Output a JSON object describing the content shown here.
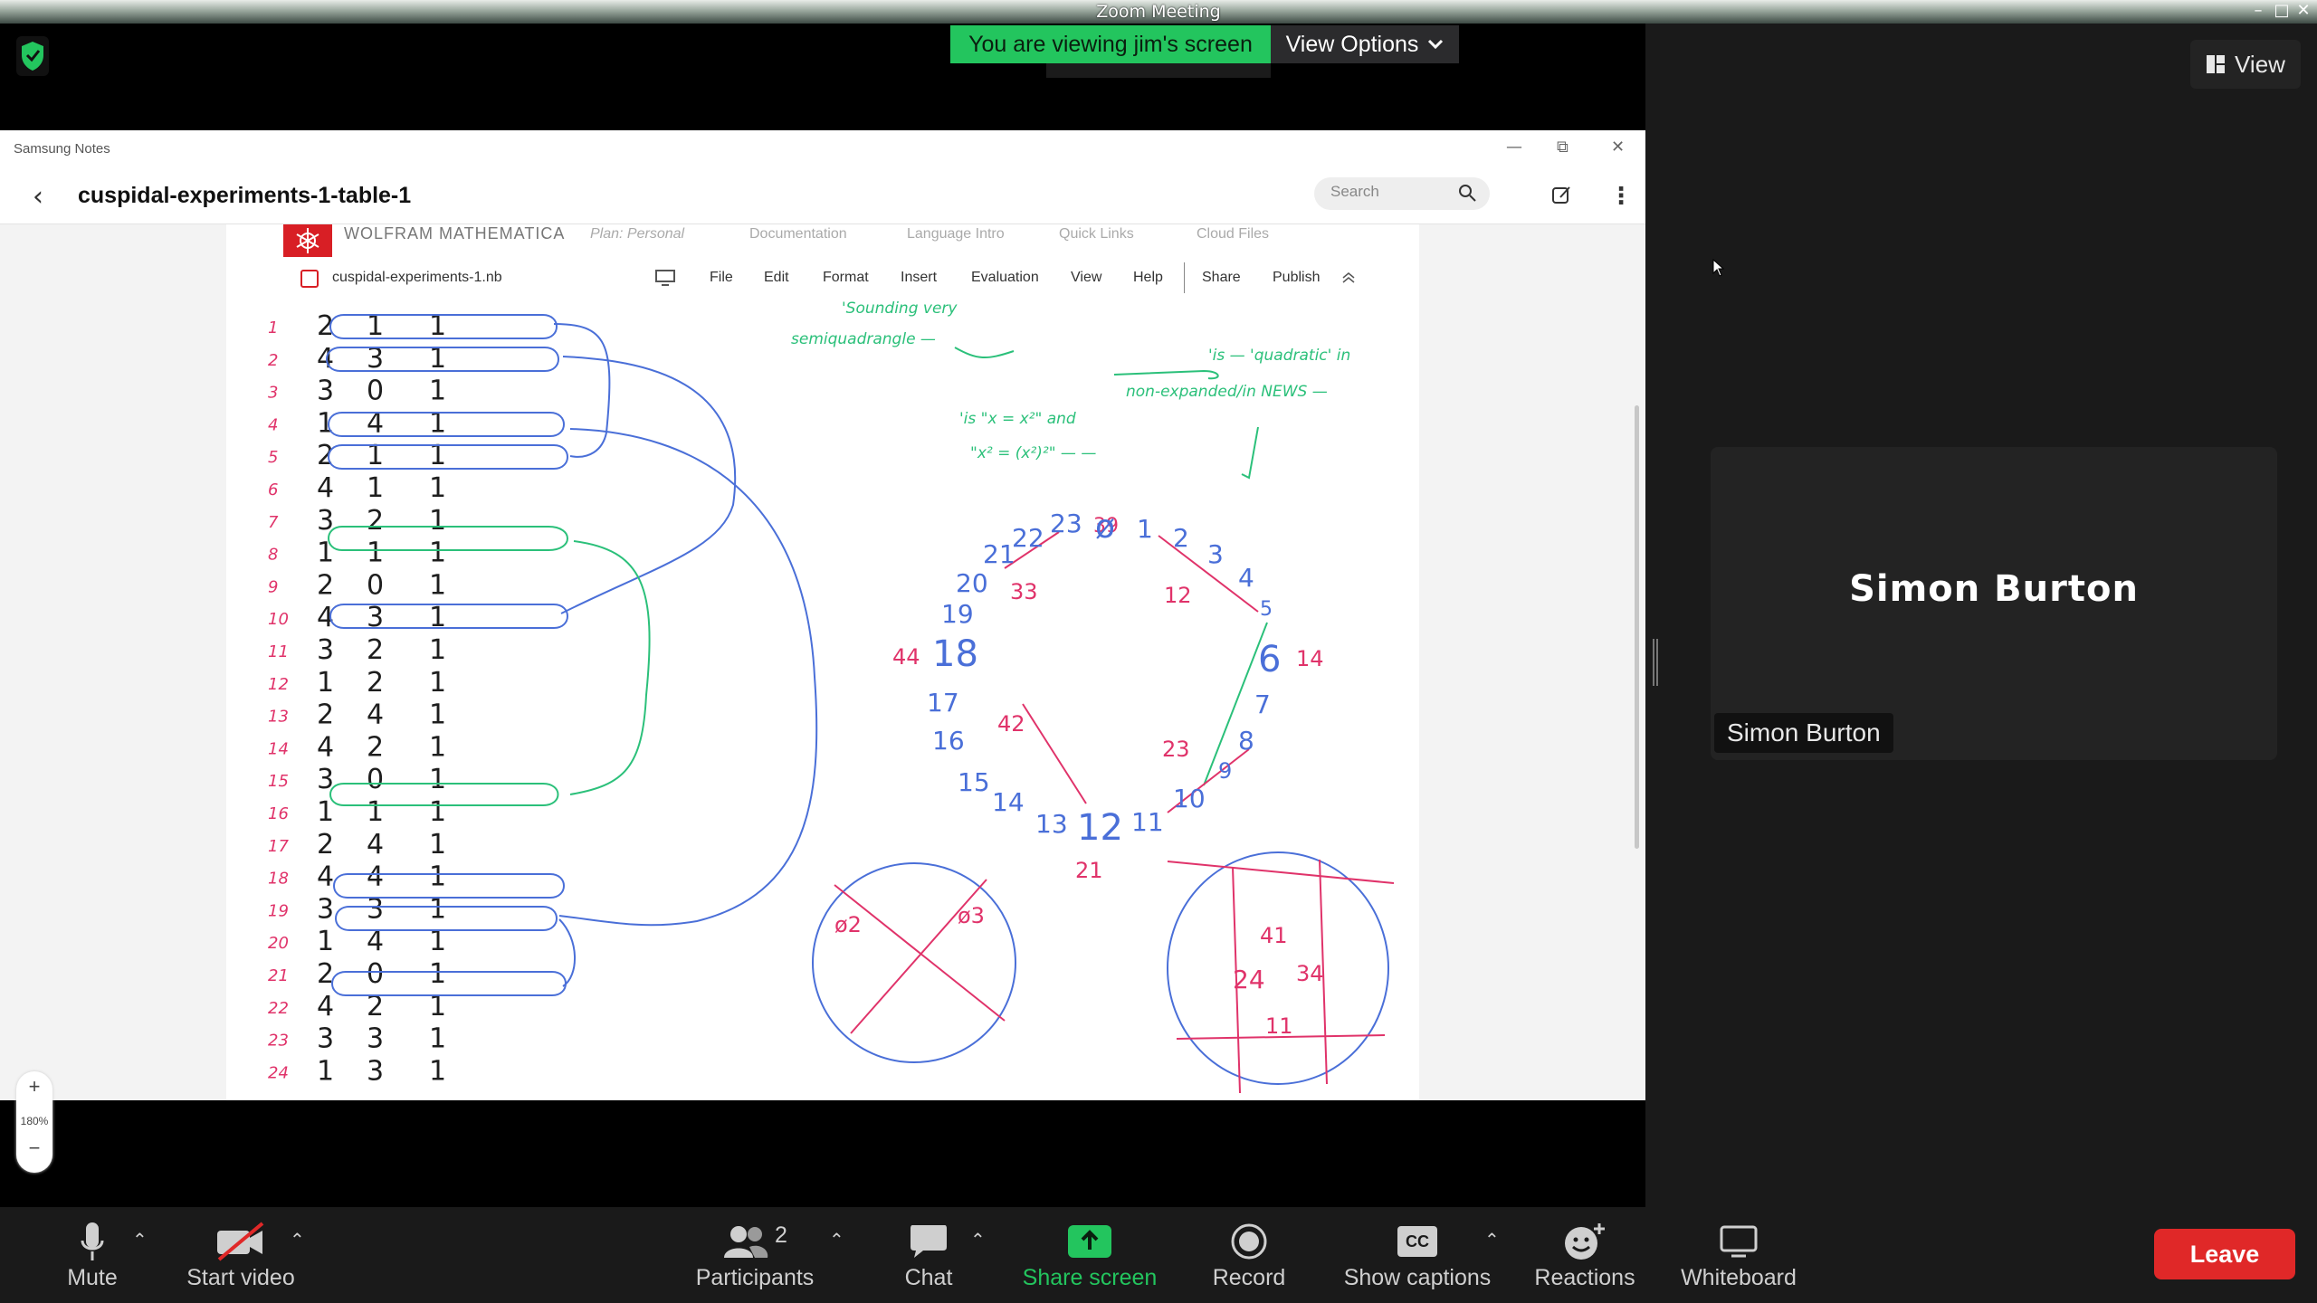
{
  "window": {
    "title": "Zoom Meeting"
  },
  "share_header": {
    "viewing": "You are viewing jim's screen",
    "view_options": "View Options"
  },
  "right_panel": {
    "view_button": "View",
    "participant_name": "Simon Burton",
    "participant_tag": "Simon Burton"
  },
  "app": {
    "name": "Samsung Notes",
    "doc_title": "cuspidal-experiments-1-table-1",
    "search_placeholder": "Search",
    "zoom_percent": "180%",
    "zoom_plus": "+",
    "zoom_minus": "−"
  },
  "mathematica": {
    "brand": "WOLFRAM MATHEMATICA",
    "plan": "Plan: Personal",
    "nav": [
      "Documentation",
      "Language Intro",
      "Quick Links",
      "Cloud Files"
    ],
    "filename": "cuspidal-experiments-1.nb",
    "menu": [
      "File",
      "Edit",
      "Format",
      "Insert",
      "Evaluation",
      "View",
      "Help",
      "Share",
      "Publish"
    ]
  },
  "note": {
    "row_labels": [
      "1",
      "2",
      "3",
      "4",
      "5",
      "6",
      "7",
      "8",
      "9",
      "10",
      "11",
      "12",
      "13",
      "14",
      "15",
      "16",
      "17",
      "18",
      "19",
      "20",
      "21",
      "22",
      "23",
      "24"
    ],
    "rows": [
      [
        2,
        1,
        1
      ],
      [
        4,
        3,
        1
      ],
      [
        3,
        0,
        1
      ],
      [
        1,
        4,
        1
      ],
      [
        2,
        1,
        1
      ],
      [
        4,
        1,
        1
      ],
      [
        3,
        2,
        1
      ],
      [
        1,
        1,
        1
      ],
      [
        2,
        0,
        1
      ],
      [
        4,
        3,
        1
      ],
      [
        3,
        2,
        1
      ],
      [
        1,
        2,
        1
      ],
      [
        2,
        4,
        1
      ],
      [
        4,
        2,
        1
      ],
      [
        3,
        0,
        1
      ],
      [
        1,
        1,
        1
      ],
      [
        2,
        4,
        1
      ],
      [
        4,
        4,
        1
      ],
      [
        3,
        3,
        1
      ],
      [
        1,
        4,
        1
      ],
      [
        2,
        0,
        1
      ],
      [
        4,
        2,
        1
      ],
      [
        3,
        3,
        1
      ],
      [
        1,
        3,
        1
      ]
    ],
    "annotations": {
      "green_1": "'Sounding very",
      "green_2": "semiquadrangle —",
      "green_3": "'is — 'quadratic' in",
      "green_4": "non-expanded/in NEWS —",
      "green_5": "'is \"x = x²\" and",
      "green_6": "\"x² = (x²)²\" — —",
      "ring_top": [
        "39",
        "ø",
        "1"
      ],
      "ring_left_nums": [
        "23",
        "22",
        "21",
        "20",
        "19",
        "18",
        "17",
        "16",
        "15",
        "14",
        "13"
      ],
      "ring_right_nums": [
        "2",
        "3",
        "4",
        "5",
        "6",
        "7",
        "8",
        "9",
        "10",
        "11"
      ],
      "ring_bottom": "12",
      "red_labels": [
        "33",
        "12",
        "44",
        "14",
        "42",
        "23",
        "21"
      ],
      "circle1_labels": [
        "ø2",
        "ø3"
      ],
      "circle2_labels": [
        "41",
        "24",
        "34",
        "11"
      ]
    }
  },
  "toolbar": {
    "mute": "Mute",
    "video": "Start video",
    "participants": "Participants",
    "participants_count": "2",
    "chat": "Chat",
    "share": "Share screen",
    "record": "Record",
    "captions": "Show captions",
    "captions_badge": "CC",
    "reactions": "Reactions",
    "whiteboard": "Whiteboard",
    "leave": "Leave"
  },
  "colors": {
    "share_green": "#23c55e",
    "leave_red": "#e02828",
    "ink_blue": "#4a6fd8",
    "ink_red": "#e0336a",
    "ink_green": "#2bc07a"
  }
}
